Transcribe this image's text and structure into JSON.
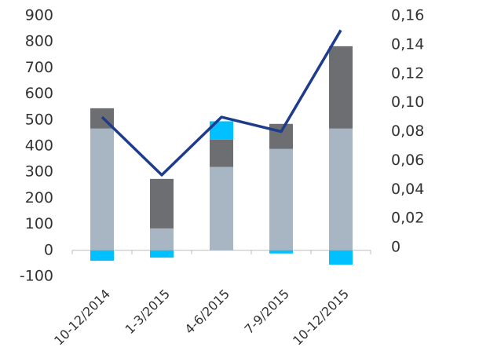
{
  "chart_data": {
    "type": "bar",
    "categories": [
      "10-12/2014",
      "1-3/2015",
      "4-6/2015",
      "7-9/2015",
      "10-12/2015"
    ],
    "series": [
      {
        "color": "#a7b6c2",
        "values": [
          467,
          84,
          320,
          389,
          467
        ]
      },
      {
        "color": "#6d6e71",
        "values": [
          78,
          190,
          105,
          96,
          316
        ]
      },
      {
        "color": "#00c0ff",
        "values": [
          -40,
          -28,
          70,
          -12,
          -55
        ]
      },
      {
        "type": "line",
        "axis": "y2",
        "color": "#1f3c8c",
        "values": [
          0.09,
          0.05,
          0.09,
          0.08,
          0.15
        ]
      }
    ],
    "stacked": true,
    "ylim": [
      -100,
      900
    ],
    "yticks": [
      -100,
      0,
      100,
      200,
      300,
      400,
      500,
      600,
      700,
      800,
      900
    ],
    "y2lim": [
      -0.02,
      0.16
    ],
    "y2ticks": [
      0,
      {
        "value": 0.02,
        "label": "0,02"
      },
      {
        "value": 0.04,
        "label": "0,04"
      },
      {
        "value": 0.06,
        "label": "0,06"
      },
      {
        "value": 0.08,
        "label": "0,08"
      },
      {
        "value": 0.1,
        "label": "0,10"
      },
      {
        "value": 0.12,
        "label": "0,12"
      },
      {
        "value": 0.14,
        "label": "0,14"
      },
      {
        "value": 0.16,
        "label": "0,16"
      }
    ]
  }
}
